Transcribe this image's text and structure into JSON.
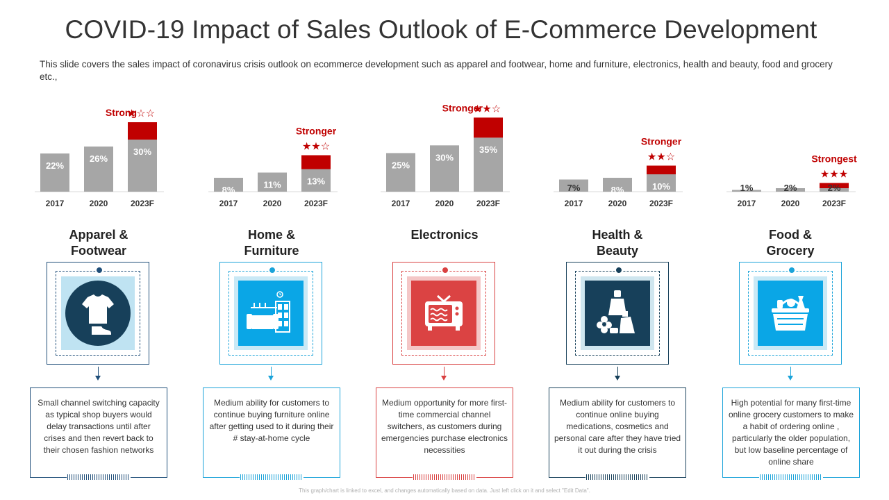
{
  "title": "COVID-19 Impact of Sales Outlook of E-Commerce Development",
  "subtitle": "This slide covers the sales impact of coronavirus crisis outlook on ecommerce development such as apparel and footwear, home and furniture, electronics, health and beauty, food and grocery etc.,",
  "footer": "This graph/chart is linked to excel, and changes automatically based on data. Just left click on it and select \"Edit Data\".",
  "colors": {
    "gray_bar": "#a6a6a6",
    "red_bar": "#c00000",
    "red_text": "#c00000"
  },
  "chart_data": [
    {
      "type": "bar",
      "categories": [
        "2017",
        "2020",
        "2023F"
      ],
      "values": [
        22,
        26,
        30
      ],
      "labels": [
        "22%",
        "26%",
        "30%"
      ],
      "highlight_2023F": 10,
      "ylim": [
        0,
        40
      ],
      "strength": "Strong",
      "stars": "★☆☆"
    },
    {
      "type": "bar",
      "categories": [
        "2017",
        "2020",
        "2023F"
      ],
      "values": [
        8,
        11,
        13
      ],
      "labels": [
        "8%",
        "11%",
        "13%"
      ],
      "highlight_2023F": 8,
      "ylim": [
        0,
        40
      ],
      "strength": "Stronger",
      "stars": "★★☆"
    },
    {
      "type": "bar",
      "categories": [
        "2017",
        "2020",
        "2023F"
      ],
      "values": [
        25,
        30,
        35
      ],
      "labels": [
        "25%",
        "30%",
        "35%"
      ],
      "highlight_2023F": 13,
      "ylim": [
        0,
        45
      ],
      "strength": "Stronger",
      "stars": "★★☆"
    },
    {
      "type": "bar",
      "categories": [
        "2017",
        "2020",
        "2023F"
      ],
      "values": [
        7,
        8,
        10
      ],
      "labels": [
        "7%",
        "8%",
        "10%"
      ],
      "highlight_2023F": 5,
      "ylim": [
        0,
        40
      ],
      "strength": "Stronger",
      "stars": "★★☆"
    },
    {
      "type": "bar",
      "categories": [
        "2017",
        "2020",
        "2023F"
      ],
      "values": [
        1,
        2,
        2
      ],
      "labels": [
        "1%",
        "2%",
        "2%"
      ],
      "highlight_2023F": 3,
      "ylim": [
        0,
        40
      ],
      "strength": "Strongest",
      "stars": "★★★"
    }
  ],
  "categories": [
    {
      "title_line1": "Apparel &",
      "title_line2": "Footwear",
      "icon": "t-shirt-shoe-icon",
      "accent": "#1f4e79",
      "tile": "#bfe3f2",
      "dot": "#1f4e79",
      "description": "Small channel switching capacity as typical shop buyers would delay transactions until after crises and then revert back to their chosen fashion networks"
    },
    {
      "title_line1": "Home &",
      "title_line2": "Furniture",
      "icon": "sofa-shelf-icon",
      "accent": "#1aa3d9",
      "tile": "#c9e9f6",
      "dot": "#1aa3d9",
      "description": "Medium ability for customers to continue buying furniture online after getting used to it during their # stay-at-home cycle"
    },
    {
      "title_line1": "Electronics",
      "title_line2": "",
      "icon": "television-icon",
      "accent": "#d94040",
      "tile": "#f4c7c7",
      "dot": "#d94040",
      "description": "Medium opportunity for more first-time commercial channel switchers, as customers during emergencies purchase electronics necessities"
    },
    {
      "title_line1": "Health &",
      "title_line2": "Beauty",
      "icon": "cosmetics-icon",
      "accent": "#17405a",
      "tile": "#cfe6ef",
      "dot": "#17405a",
      "description": "Medium ability for customers to continue online buying medications, cosmetics and personal care after they have tried it out during the crisis"
    },
    {
      "title_line1": "Food &",
      "title_line2": "Grocery",
      "icon": "grocery-basket-icon",
      "accent": "#1aa3d9",
      "tile": "#c9e9f6",
      "dot": "#1aa3d9",
      "description": "High potential for many first-time online grocery customers to make a habit of ordering online , particularly the older population, but low baseline percentage of online share"
    }
  ]
}
